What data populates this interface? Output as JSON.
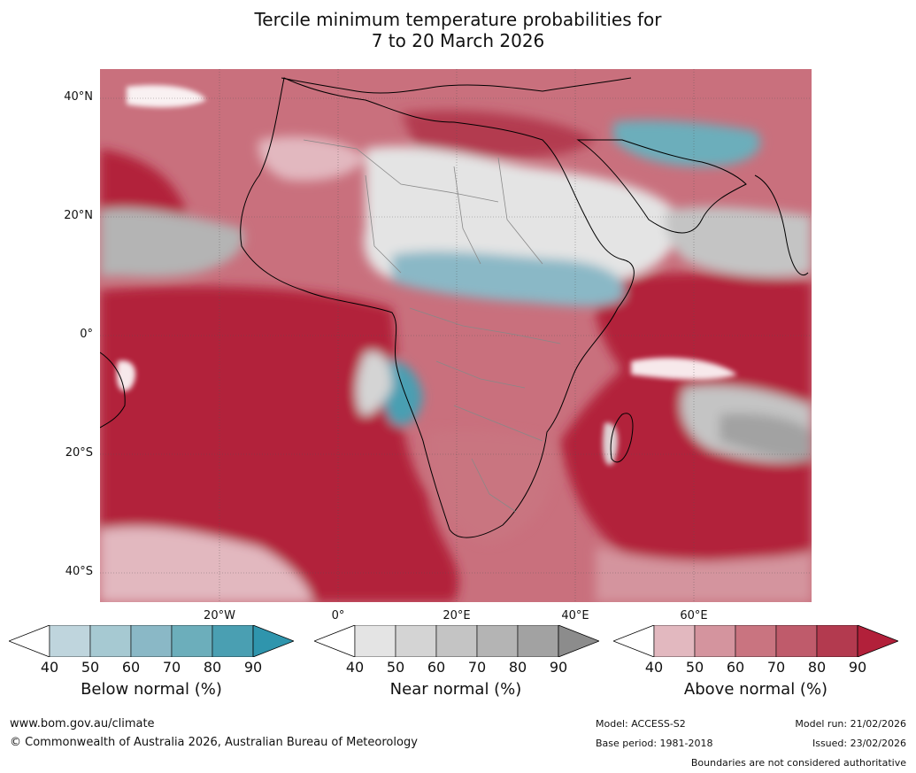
{
  "title": {
    "line1": "Tercile minimum temperature probabilities for",
    "line2": "7 to 20 March 2026"
  },
  "map": {
    "lat_labels": [
      "40°N",
      "20°N",
      "0°",
      "20°S",
      "40°S"
    ],
    "lon_labels": [
      "20°W",
      "0°",
      "20°E",
      "40°E",
      "60°E"
    ]
  },
  "colorbars": [
    {
      "label": "Below normal (%)",
      "ticks": [
        "40",
        "50",
        "60",
        "70",
        "80",
        "90"
      ],
      "colors": [
        "#ffffff",
        "#bfd5dd",
        "#a6c9d2",
        "#8ab8c6",
        "#6caebb",
        "#4a9fb2",
        "#2f95ad"
      ]
    },
    {
      "label": "Near normal (%)",
      "ticks": [
        "40",
        "50",
        "60",
        "70",
        "80",
        "90"
      ],
      "colors": [
        "#ffffff",
        "#e4e4e4",
        "#d4d4d4",
        "#c4c4c4",
        "#b4b4b4",
        "#a2a2a2",
        "#8c8c8c"
      ]
    },
    {
      "label": "Above normal (%)",
      "ticks": [
        "40",
        "50",
        "60",
        "70",
        "80",
        "90"
      ],
      "colors": [
        "#ffffff",
        "#e2b8bf",
        "#d4949e",
        "#c97480",
        "#bf5b6b",
        "#b33a4f",
        "#b2203a"
      ]
    }
  ],
  "footer": {
    "website": "www.bom.gov.au/climate",
    "copyright": "© Commonwealth of Australia 2026, Australian Bureau of Meteorology",
    "model": "Model: ACCESS-S2",
    "base_period": "Base period: 1981-2018",
    "model_run": "Model run: 21/02/2026",
    "issued": "Issued: 23/02/2026",
    "disclaimer": "Boundaries are not considered authoritative"
  }
}
